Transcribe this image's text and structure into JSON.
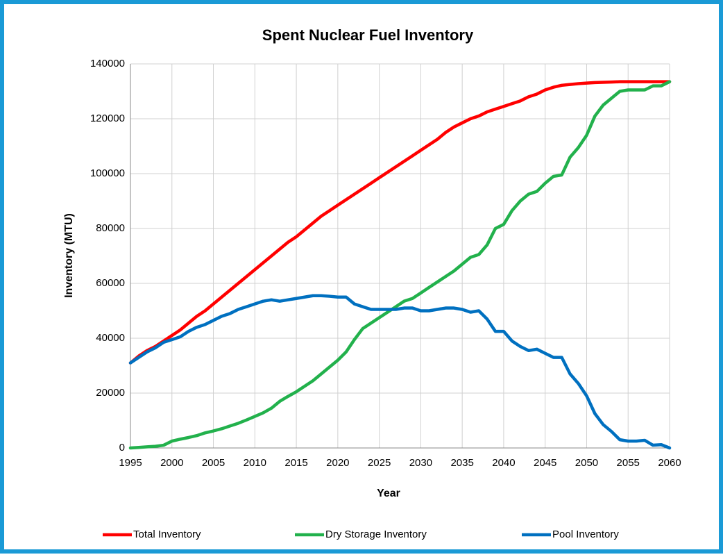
{
  "chart_data": {
    "type": "line",
    "title": "Spent Nuclear Fuel Inventory",
    "x_label": "Year",
    "y_label": "Inventory (MTU)",
    "x": [
      1995,
      1996,
      1997,
      1998,
      1999,
      2000,
      2001,
      2002,
      2003,
      2004,
      2005,
      2006,
      2007,
      2008,
      2009,
      2010,
      2011,
      2012,
      2013,
      2014,
      2015,
      2016,
      2017,
      2018,
      2019,
      2020,
      2021,
      2022,
      2023,
      2024,
      2025,
      2026,
      2027,
      2028,
      2029,
      2030,
      2031,
      2032,
      2033,
      2034,
      2035,
      2036,
      2037,
      2038,
      2039,
      2040,
      2041,
      2042,
      2043,
      2044,
      2045,
      2046,
      2047,
      2048,
      2049,
      2050,
      2051,
      2052,
      2053,
      2054,
      2055,
      2056,
      2057,
      2058,
      2059,
      2060
    ],
    "series": [
      {
        "name": "Total Inventory",
        "color": "#ff0000",
        "values": [
          31000,
          33500,
          35500,
          37000,
          39000,
          41000,
          43000,
          45500,
          48000,
          50000,
          52500,
          55000,
          57500,
          60000,
          62500,
          65000,
          67500,
          70000,
          72500,
          75000,
          77000,
          79500,
          82000,
          84500,
          86500,
          88500,
          90500,
          92500,
          94500,
          96500,
          98500,
          100500,
          102500,
          104500,
          106500,
          108500,
          110500,
          112500,
          115000,
          117000,
          118500,
          120000,
          121000,
          122500,
          123500,
          124500,
          125500,
          126500,
          128000,
          129000,
          130500,
          131500,
          132200,
          132500,
          132800,
          133000,
          133200,
          133300,
          133400,
          133500,
          133500,
          133500,
          133500,
          133500,
          133500,
          133500
        ]
      },
      {
        "name": "Dry Storage Inventory",
        "color": "#22b14c",
        "values": [
          0,
          200,
          400,
          600,
          1000,
          2500,
          3200,
          3800,
          4500,
          5500,
          6200,
          7000,
          8000,
          9000,
          10200,
          11500,
          12800,
          14500,
          17000,
          18800,
          20500,
          22500,
          24500,
          27000,
          29500,
          32000,
          35000,
          39500,
          43500,
          45500,
          47500,
          49500,
          51500,
          53500,
          54500,
          56500,
          58500,
          60500,
          62500,
          64500,
          67000,
          69500,
          70500,
          74000,
          80000,
          81500,
          86500,
          90000,
          92500,
          93500,
          96500,
          99000,
          99500,
          106000,
          109500,
          114000,
          121000,
          125000,
          127500,
          130000,
          130500,
          130500,
          130500,
          132000,
          132000,
          133500
        ]
      },
      {
        "name": "Pool Inventory",
        "color": "#0070c0",
        "values": [
          31000,
          33000,
          35000,
          36500,
          38500,
          39500,
          40500,
          42500,
          44000,
          45000,
          46500,
          48000,
          49000,
          50500,
          51500,
          52500,
          53500,
          54000,
          53500,
          54000,
          54500,
          55000,
          55500,
          55500,
          55300,
          55000,
          55000,
          52500,
          51500,
          50500,
          50500,
          50500,
          50500,
          51000,
          51000,
          50000,
          50000,
          50500,
          51000,
          51000,
          50500,
          49500,
          50000,
          47000,
          42500,
          42500,
          39000,
          37000,
          35500,
          36000,
          34500,
          33000,
          33000,
          27000,
          23500,
          19000,
          12500,
          8500,
          6000,
          3000,
          2500,
          2500,
          2800,
          1000,
          1200,
          0
        ]
      }
    ],
    "xlim": [
      1995,
      2060
    ],
    "xticks": [
      1995,
      2000,
      2005,
      2010,
      2015,
      2020,
      2025,
      2030,
      2035,
      2040,
      2045,
      2050,
      2055,
      2060
    ],
    "ylim": [
      0,
      140000
    ],
    "yticks": [
      0,
      20000,
      40000,
      60000,
      80000,
      100000,
      120000,
      140000
    ],
    "grid": true,
    "legend": "bottom"
  }
}
